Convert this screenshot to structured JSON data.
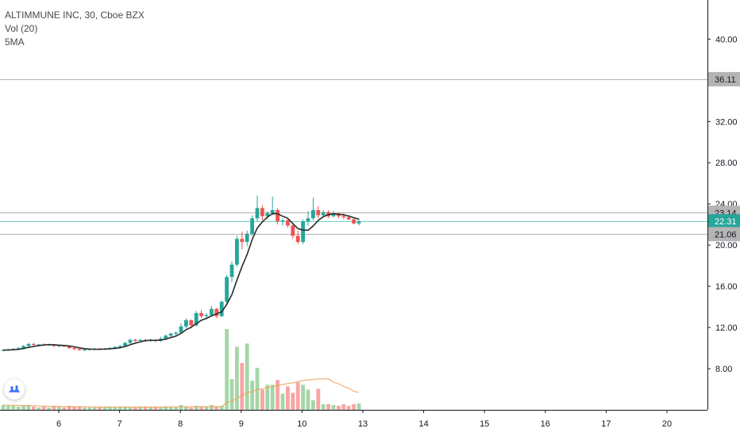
{
  "legend": {
    "symbol_line": "ALTIMMUNE INC, 30, Cboe BZX",
    "vol_line": "Vol (20)",
    "ma_line": "5MA"
  },
  "price_labels": [
    {
      "text": "36.11",
      "value": 36.11,
      "style": "gray"
    },
    {
      "text": "23.14",
      "value": 23.14,
      "style": "gray"
    },
    {
      "text": "22.31",
      "value": 22.31,
      "style": "teal"
    },
    {
      "text": "21.06",
      "value": 21.06,
      "style": "gray"
    }
  ],
  "colors": {
    "up": "#26a69a",
    "down": "#ef5350",
    "up_vol": "#a5d6a7",
    "down_vol": "#f7a5a3",
    "ma": "#2b2b2b",
    "vol_ma": "#f0a05a",
    "hline_gray": "#b0b0b0",
    "hline_teal": "#6fcfc3",
    "axis_label_gray": "#b4b4b4",
    "axis_label_teal": "#26a69a"
  },
  "icons": {
    "logo": "tradingview-logo-icon"
  },
  "chart_data": {
    "type": "candlestick",
    "title": "ALTIMMUNE INC, 30, Cboe BZX",
    "y_ticks": [
      8,
      12,
      16,
      20,
      24,
      28,
      32,
      36,
      40
    ],
    "y_tick_labels": [
      "8.00",
      "12.00",
      "16.00",
      "20.00",
      "24.00",
      "28.00",
      "32.00",
      "36.00",
      "40.00"
    ],
    "ylim": [
      4.0,
      43.8
    ],
    "x_ticks": [
      "6",
      "7",
      "8",
      "9",
      "10",
      "13",
      "14",
      "15",
      "16",
      "17",
      "20"
    ],
    "x_domain": [
      5.0,
      20.7
    ],
    "grid": false,
    "horizontal_lines": [
      36.11,
      23.14,
      22.31,
      21.06
    ],
    "candles_x_start": 5.0,
    "candles_x_step": 0.0714,
    "ohlc": [
      [
        9.8,
        9.9,
        9.7,
        9.8
      ],
      [
        9.8,
        9.9,
        9.7,
        9.85
      ],
      [
        9.85,
        10.0,
        9.75,
        9.9
      ],
      [
        9.9,
        10.1,
        9.8,
        10.0
      ],
      [
        10.0,
        10.3,
        9.9,
        10.2
      ],
      [
        10.2,
        10.5,
        10.1,
        10.4
      ],
      [
        10.4,
        10.5,
        10.2,
        10.3
      ],
      [
        10.3,
        10.4,
        10.2,
        10.35
      ],
      [
        10.35,
        10.45,
        10.2,
        10.3
      ],
      [
        10.3,
        10.4,
        10.2,
        10.35
      ],
      [
        10.35,
        10.4,
        10.1,
        10.2
      ],
      [
        10.2,
        10.3,
        10.1,
        10.25
      ],
      [
        10.25,
        10.3,
        10.1,
        10.15
      ],
      [
        10.15,
        10.2,
        9.9,
        10.0
      ],
      [
        10.0,
        10.1,
        9.8,
        9.9
      ],
      [
        9.9,
        10.0,
        9.75,
        9.8
      ],
      [
        9.8,
        9.9,
        9.7,
        9.85
      ],
      [
        9.85,
        9.95,
        9.75,
        9.9
      ],
      [
        9.9,
        10.0,
        9.8,
        9.95
      ],
      [
        9.95,
        10.0,
        9.8,
        9.9
      ],
      [
        9.9,
        10.0,
        9.8,
        9.95
      ],
      [
        9.95,
        10.1,
        9.85,
        10.0
      ],
      [
        10.0,
        10.2,
        9.9,
        10.1
      ],
      [
        10.1,
        10.3,
        10.0,
        10.2
      ],
      [
        10.2,
        10.6,
        10.1,
        10.5
      ],
      [
        10.5,
        10.9,
        10.4,
        10.8
      ],
      [
        10.8,
        10.9,
        10.6,
        10.7
      ],
      [
        10.7,
        10.9,
        10.6,
        10.8
      ],
      [
        10.8,
        10.9,
        10.6,
        10.7
      ],
      [
        10.7,
        10.9,
        10.6,
        10.8
      ],
      [
        10.8,
        10.9,
        10.6,
        10.7
      ],
      [
        10.7,
        11.1,
        10.6,
        10.9
      ],
      [
        10.9,
        11.3,
        10.8,
        11.2
      ],
      [
        11.2,
        11.5,
        11.0,
        11.4
      ],
      [
        11.4,
        11.6,
        11.2,
        11.5
      ],
      [
        11.5,
        12.4,
        11.4,
        12.1
      ],
      [
        12.1,
        12.9,
        11.9,
        12.7
      ],
      [
        12.7,
        12.8,
        11.9,
        12.2
      ],
      [
        12.2,
        13.6,
        12.1,
        13.4
      ],
      [
        13.4,
        13.7,
        12.9,
        13.1
      ],
      [
        13.1,
        13.4,
        12.8,
        13.2
      ],
      [
        13.2,
        14.1,
        13.1,
        13.8
      ],
      [
        13.8,
        13.9,
        12.9,
        13.1
      ],
      [
        13.1,
        14.6,
        13.0,
        14.5
      ],
      [
        14.5,
        17.1,
        14.3,
        16.9
      ],
      [
        16.9,
        18.4,
        16.4,
        18.1
      ],
      [
        18.1,
        20.9,
        17.9,
        20.6
      ],
      [
        20.6,
        21.3,
        19.6,
        20.3
      ],
      [
        20.3,
        21.4,
        19.9,
        21.1
      ],
      [
        21.1,
        22.9,
        20.9,
        22.6
      ],
      [
        22.6,
        24.8,
        22.3,
        23.6
      ],
      [
        23.6,
        23.9,
        22.4,
        22.8
      ],
      [
        22.8,
        23.3,
        22.5,
        23.1
      ],
      [
        23.1,
        24.7,
        22.9,
        23.4
      ],
      [
        23.4,
        23.6,
        22.0,
        22.3
      ],
      [
        22.3,
        22.6,
        21.9,
        22.4
      ],
      [
        22.4,
        22.6,
        21.7,
        21.9
      ],
      [
        21.9,
        22.1,
        20.6,
        20.9
      ],
      [
        20.9,
        21.4,
        20.1,
        20.3
      ],
      [
        20.3,
        22.5,
        20.1,
        22.3
      ],
      [
        22.3,
        23.3,
        21.9,
        22.6
      ],
      [
        22.6,
        24.6,
        22.4,
        23.4
      ],
      [
        23.4,
        23.8,
        22.6,
        22.9
      ],
      [
        22.9,
        23.4,
        22.7,
        23.2
      ],
      [
        23.2,
        23.4,
        22.6,
        22.8
      ],
      [
        22.8,
        23.3,
        22.7,
        23.0
      ],
      [
        23.0,
        23.2,
        22.6,
        22.8
      ],
      [
        22.8,
        23.1,
        22.5,
        22.7
      ],
      [
        22.7,
        22.9,
        22.4,
        22.5
      ],
      [
        22.5,
        22.7,
        22.0,
        22.1
      ],
      [
        22.1,
        22.6,
        21.9,
        22.31
      ]
    ],
    "volume": [
      6,
      5,
      5,
      4,
      5,
      6,
      4,
      3,
      4,
      3,
      4,
      4,
      3,
      5,
      4,
      4,
      3,
      3,
      3,
      3,
      3,
      4,
      3,
      4,
      4,
      3,
      3,
      4,
      4,
      3,
      4,
      3,
      4,
      4,
      3,
      6,
      4,
      3,
      5,
      4,
      4,
      6,
      4,
      5,
      100,
      38,
      78,
      58,
      82,
      36,
      52,
      25,
      31,
      31,
      37,
      20,
      29,
      21,
      34,
      31,
      25,
      12,
      26,
      7,
      7,
      6,
      5,
      7,
      5,
      7,
      8
    ],
    "ma5": [
      9.8,
      9.82,
      9.84,
      9.87,
      9.95,
      10.07,
      10.15,
      10.24,
      10.3,
      10.34,
      10.32,
      10.28,
      10.25,
      10.2,
      10.12,
      10.02,
      9.94,
      9.9,
      9.88,
      9.88,
      9.9,
      9.92,
      9.97,
      10.03,
      10.15,
      10.32,
      10.48,
      10.6,
      10.72,
      10.76,
      10.74,
      10.78,
      10.86,
      11.02,
      11.16,
      11.42,
      11.78,
      12.02,
      12.38,
      12.7,
      12.88,
      13.12,
      13.32,
      13.52,
      14.24,
      15.18,
      16.6,
      17.92,
      19.08,
      20.54,
      21.65,
      22.25,
      22.72,
      23.06,
      23.04,
      22.8,
      22.6,
      22.1,
      21.6,
      21.46,
      21.44,
      21.86,
      22.4,
      22.76,
      22.96,
      23.04,
      23.0,
      22.94,
      22.82,
      22.66,
      22.52
    ],
    "vol_ma": [
      6,
      5.8,
      5.6,
      5.4,
      5.3,
      5.2,
      5.0,
      4.8,
      4.6,
      4.4,
      4.3,
      4.2,
      4.1,
      4.1,
      4.1,
      4.0,
      3.9,
      3.8,
      3.7,
      3.6,
      3.6,
      3.6,
      3.6,
      3.6,
      3.6,
      3.6,
      3.6,
      3.6,
      3.6,
      3.6,
      3.6,
      3.6,
      3.7,
      3.7,
      3.7,
      3.8,
      3.8,
      3.8,
      3.9,
      3.9,
      3.9,
      4.0,
      4.0,
      4.1,
      9.0,
      10.7,
      14.5,
      17.2,
      21.1,
      22.6,
      25.0,
      26.0,
      27.4,
      28.8,
      30.6,
      31.3,
      32.6,
      33.3,
      34.8,
      36.2,
      37.2,
      37.5,
      38.2,
      38.3,
      38.3,
      34.0,
      32.3,
      29.0,
      26.6,
      22.9,
      21.5
    ]
  }
}
